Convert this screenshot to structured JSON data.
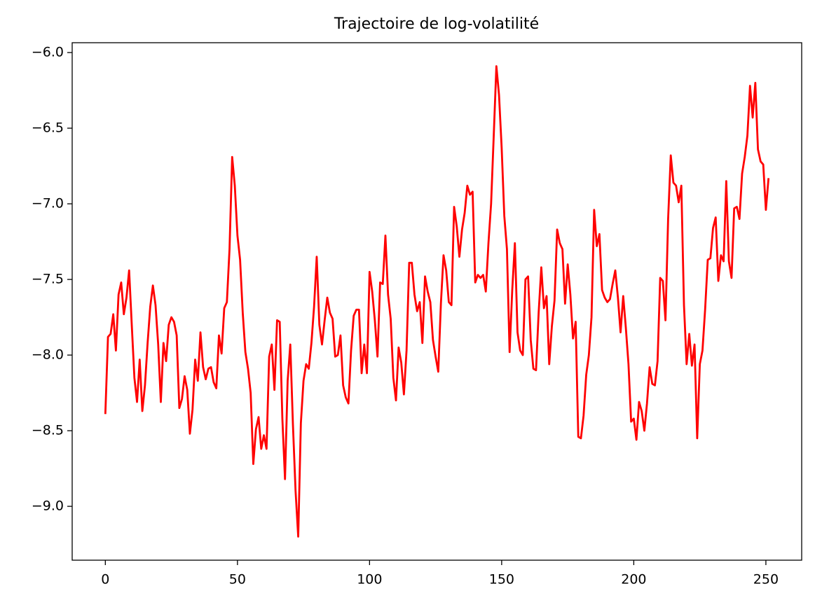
{
  "chart_data": {
    "type": "line",
    "title": "Trajectoire de log-volatilité",
    "color": "#ff0000",
    "values": [
      -8.39,
      -7.88,
      -7.86,
      -7.73,
      -7.97,
      -7.6,
      -7.52,
      -7.73,
      -7.62,
      -7.44,
      -7.8,
      -8.15,
      -8.31,
      -8.03,
      -8.37,
      -8.2,
      -7.92,
      -7.68,
      -7.54,
      -7.67,
      -7.93,
      -8.31,
      -7.92,
      -8.04,
      -7.8,
      -7.75,
      -7.78,
      -7.87,
      -8.35,
      -8.29,
      -8.14,
      -8.23,
      -8.52,
      -8.36,
      -8.03,
      -8.17,
      -7.85,
      -8.08,
      -8.16,
      -8.09,
      -8.08,
      -8.18,
      -8.22,
      -7.87,
      -7.99,
      -7.69,
      -7.65,
      -7.3,
      -6.69,
      -6.88,
      -7.21,
      -7.37,
      -7.72,
      -7.98,
      -8.09,
      -8.25,
      -8.72,
      -8.49,
      -8.41,
      -8.62,
      -8.53,
      -8.62,
      -8.01,
      -7.93,
      -8.23,
      -7.77,
      -7.78,
      -8.42,
      -8.82,
      -8.17,
      -7.93,
      -8.46,
      -8.9,
      -9.2,
      -8.45,
      -8.17,
      -8.06,
      -8.09,
      -7.92,
      -7.68,
      -7.35,
      -7.8,
      -7.93,
      -7.77,
      -7.62,
      -7.72,
      -7.76,
      -8.01,
      -8.0,
      -7.87,
      -8.2,
      -8.28,
      -8.32,
      -7.97,
      -7.74,
      -7.7,
      -7.7,
      -8.12,
      -7.93,
      -8.12,
      -7.45,
      -7.58,
      -7.77,
      -8.01,
      -7.52,
      -7.53,
      -7.21,
      -7.6,
      -7.76,
      -8.15,
      -8.3,
      -7.95,
      -8.05,
      -8.26,
      -7.97,
      -7.39,
      -7.39,
      -7.6,
      -7.71,
      -7.65,
      -7.92,
      -7.48,
      -7.58,
      -7.65,
      -7.9,
      -8.01,
      -8.11,
      -7.66,
      -7.34,
      -7.44,
      -7.65,
      -7.67,
      -7.02,
      -7.15,
      -7.35,
      -7.17,
      -7.06,
      -6.88,
      -6.94,
      -6.92,
      -7.52,
      -7.47,
      -7.49,
      -7.47,
      -7.58,
      -7.26,
      -7.0,
      -6.55,
      -6.09,
      -6.28,
      -6.63,
      -7.08,
      -7.3,
      -7.98,
      -7.57,
      -7.26,
      -7.85,
      -7.97,
      -8.0,
      -7.5,
      -7.48,
      -7.9,
      -8.09,
      -8.1,
      -7.72,
      -7.42,
      -7.69,
      -7.61,
      -8.06,
      -7.81,
      -7.64,
      -7.17,
      -7.26,
      -7.3,
      -7.66,
      -7.4,
      -7.6,
      -7.89,
      -7.78,
      -8.54,
      -8.55,
      -8.4,
      -8.13,
      -8.0,
      -7.75,
      -7.04,
      -7.28,
      -7.2,
      -7.57,
      -7.62,
      -7.65,
      -7.63,
      -7.53,
      -7.44,
      -7.62,
      -7.85,
      -7.61,
      -7.82,
      -8.06,
      -8.44,
      -8.42,
      -8.56,
      -8.31,
      -8.37,
      -8.5,
      -8.32,
      -8.08,
      -8.19,
      -8.2,
      -8.04,
      -7.49,
      -7.51,
      -7.77,
      -7.1,
      -6.68,
      -6.86,
      -6.88,
      -6.99,
      -6.88,
      -7.67,
      -8.06,
      -7.86,
      -8.07,
      -7.93,
      -8.55,
      -8.06,
      -7.97,
      -7.7,
      -7.37,
      -7.36,
      -7.16,
      -7.09,
      -7.51,
      -7.34,
      -7.38,
      -6.85,
      -7.38,
      -7.49,
      -7.03,
      -7.02,
      -7.1,
      -6.8,
      -6.69,
      -6.55,
      -6.22,
      -6.43,
      -6.2,
      -6.64,
      -6.72,
      -6.74,
      -7.04,
      -6.83
    ],
    "xlim": [
      -12.55,
      263.55
    ],
    "xticks": [
      0,
      50,
      100,
      150,
      200,
      250
    ],
    "ylim": [
      -9.356,
      -5.935
    ],
    "yticks": [
      {
        "value": -9.0,
        "label": "−9.0"
      },
      {
        "value": -8.5,
        "label": "−8.5"
      },
      {
        "value": -8.0,
        "label": "−8.0"
      },
      {
        "value": -7.5,
        "label": "−7.5"
      },
      {
        "value": -7.0,
        "label": "−7.0"
      },
      {
        "value": -6.5,
        "label": "−6.5"
      },
      {
        "value": -6.0,
        "label": "−6.0"
      }
    ],
    "grid": false
  }
}
